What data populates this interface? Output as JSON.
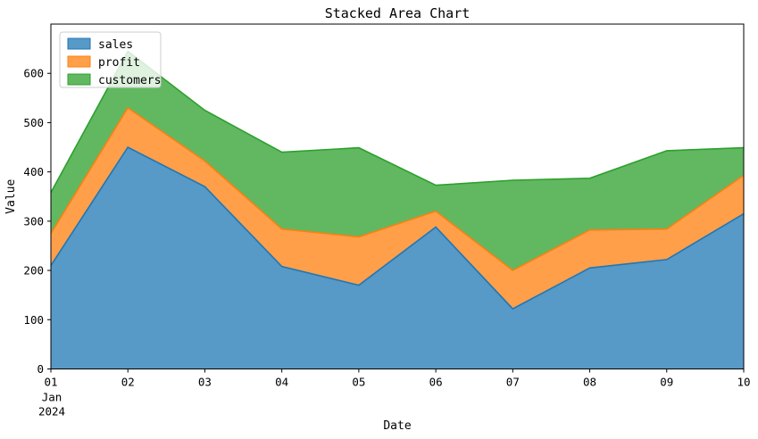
{
  "window": {
    "title": "Stacked Area Chart"
  },
  "chart_data": {
    "type": "area",
    "stacked": true,
    "title": "Stacked Area Chart",
    "xlabel": "Date",
    "ylabel": "Value",
    "x_tick_labels": [
      "01",
      "02",
      "03",
      "04",
      "05",
      "06",
      "07",
      "08",
      "09",
      "10"
    ],
    "x_first_tick_sublabels": [
      "Jan",
      "2024"
    ],
    "y_ticks": [
      0,
      100,
      200,
      300,
      400,
      500,
      600
    ],
    "ylim": [
      0,
      700
    ],
    "grid": false,
    "legend": {
      "position": "upper-left",
      "entries": [
        {
          "label": "sales",
          "color": "#1f77b4"
        },
        {
          "label": "profit",
          "color": "#ff7f0e"
        },
        {
          "label": "customers",
          "color": "#2ca02c"
        }
      ]
    },
    "fill_alpha": 0.75,
    "series": [
      {
        "name": "sales",
        "color": "#1f77b4",
        "values": [
          210,
          450,
          370,
          208,
          170,
          288,
          122,
          205,
          222,
          315
        ]
      },
      {
        "name": "profit",
        "color": "#ff7f0e",
        "values": [
          65,
          80,
          52,
          76,
          98,
          32,
          78,
          77,
          62,
          78
        ]
      },
      {
        "name": "customers",
        "color": "#2ca02c",
        "values": [
          83,
          115,
          103,
          156,
          181,
          53,
          183,
          105,
          159,
          56
        ]
      }
    ],
    "axis_color": "#000000",
    "legend_border_color": "#cccccc"
  }
}
